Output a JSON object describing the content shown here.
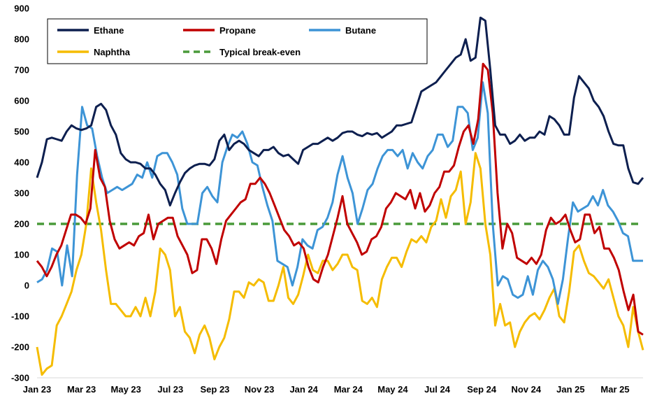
{
  "chart_data": {
    "type": "line",
    "title": "",
    "xlabel": "",
    "ylabel": "",
    "ylim": [
      -300,
      900
    ],
    "yticks": [
      -300,
      -200,
      -100,
      0,
      100,
      200,
      300,
      400,
      500,
      600,
      700,
      800,
      900
    ],
    "x_tick_labels": [
      "Jan 23",
      "Mar 23",
      "May 23",
      "Jul 23",
      "Sep 23",
      "Nov 23",
      "Jan 24",
      "Mar 24",
      "May 24",
      "Jul 24",
      "Sep 24",
      "Nov 24",
      "Jan 25",
      "Mar 25"
    ],
    "grid": false,
    "legend_position": "top",
    "series": [
      {
        "name": "Ethane",
        "color": "#0d1f4f",
        "dash": "solid",
        "values": [
          350,
          400,
          475,
          480,
          475,
          470,
          500,
          520,
          510,
          505,
          510,
          520,
          580,
          590,
          570,
          520,
          490,
          430,
          410,
          400,
          400,
          395,
          380,
          380,
          360,
          330,
          310,
          260,
          300,
          335,
          365,
          380,
          390,
          395,
          395,
          390,
          410,
          470,
          490,
          440,
          460,
          470,
          460,
          440,
          430,
          420,
          440,
          440,
          450,
          430,
          420,
          425,
          410,
          395,
          440,
          450,
          460,
          460,
          470,
          480,
          470,
          480,
          495,
          500,
          500,
          490,
          485,
          495,
          490,
          495,
          480,
          490,
          500,
          520,
          520,
          525,
          530,
          580,
          630,
          640,
          650,
          660,
          680,
          700,
          720,
          740,
          750,
          800,
          730,
          740,
          870,
          860,
          700,
          520,
          490,
          490,
          460,
          470,
          490,
          470,
          480,
          480,
          500,
          490,
          550,
          540,
          520,
          490,
          490,
          610,
          680,
          660,
          640,
          600,
          580,
          550,
          500,
          460,
          455,
          455,
          380,
          335,
          330,
          350
        ]
      },
      {
        "name": "Propane",
        "color": "#c00000",
        "dash": "solid",
        "values": [
          80,
          60,
          30,
          60,
          100,
          130,
          180,
          230,
          230,
          220,
          200,
          250,
          440,
          350,
          320,
          210,
          150,
          120,
          130,
          140,
          130,
          160,
          170,
          230,
          150,
          200,
          210,
          220,
          220,
          160,
          130,
          100,
          40,
          50,
          150,
          150,
          120,
          70,
          150,
          210,
          230,
          250,
          270,
          280,
          330,
          330,
          350,
          330,
          300,
          260,
          220,
          180,
          160,
          130,
          140,
          120,
          60,
          20,
          10,
          60,
          100,
          160,
          220,
          290,
          200,
          170,
          140,
          100,
          110,
          150,
          160,
          190,
          250,
          270,
          300,
          290,
          280,
          310,
          250,
          300,
          240,
          260,
          300,
          320,
          370,
          370,
          390,
          450,
          500,
          520,
          460,
          540,
          720,
          700,
          560,
          300,
          120,
          200,
          170,
          90,
          80,
          70,
          90,
          70,
          100,
          180,
          220,
          200,
          210,
          230,
          180,
          140,
          150,
          230,
          230,
          170,
          190,
          120,
          120,
          90,
          50,
          -20,
          -80,
          -30,
          -150,
          -160
        ]
      },
      {
        "name": "Butane",
        "color": "#3d94d6",
        "dash": "solid",
        "values": [
          10,
          20,
          50,
          120,
          110,
          0,
          130,
          30,
          360,
          580,
          520,
          510,
          420,
          350,
          300,
          310,
          320,
          310,
          320,
          330,
          360,
          350,
          400,
          350,
          420,
          430,
          430,
          400,
          360,
          250,
          200,
          200,
          200,
          300,
          320,
          290,
          270,
          400,
          450,
          490,
          480,
          500,
          460,
          400,
          390,
          320,
          260,
          210,
          80,
          70,
          60,
          0,
          60,
          150,
          130,
          120,
          180,
          190,
          220,
          270,
          360,
          420,
          350,
          300,
          200,
          250,
          310,
          330,
          380,
          420,
          440,
          440,
          420,
          440,
          380,
          430,
          400,
          380,
          420,
          440,
          490,
          490,
          450,
          470,
          580,
          580,
          560,
          440,
          480,
          660,
          560,
          200,
          0,
          30,
          20,
          -30,
          -40,
          -30,
          30,
          -30,
          50,
          80,
          60,
          20,
          -60,
          20,
          150,
          270,
          240,
          250,
          260,
          290,
          260,
          310,
          260,
          240,
          210,
          170,
          160,
          80,
          80,
          80
        ]
      },
      {
        "name": "Naphtha",
        "color": "#f5bc00",
        "dash": "solid",
        "values": [
          -200,
          -290,
          -270,
          -260,
          -130,
          -100,
          -60,
          -20,
          50,
          100,
          200,
          380,
          270,
          180,
          50,
          -60,
          -60,
          -80,
          -100,
          -100,
          -70,
          -100,
          -40,
          -100,
          -20,
          120,
          100,
          50,
          -100,
          -70,
          -150,
          -170,
          -220,
          -160,
          -130,
          -170,
          -240,
          -200,
          -170,
          -110,
          -20,
          -20,
          -40,
          10,
          0,
          20,
          10,
          -50,
          -50,
          0,
          60,
          -40,
          -60,
          -30,
          30,
          100,
          50,
          40,
          80,
          80,
          50,
          70,
          100,
          100,
          60,
          50,
          -50,
          -60,
          -40,
          -70,
          20,
          60,
          90,
          90,
          60,
          110,
          150,
          140,
          160,
          140,
          190,
          210,
          280,
          220,
          290,
          310,
          370,
          200,
          270,
          430,
          380,
          200,
          100,
          -130,
          -60,
          -130,
          -120,
          -200,
          -150,
          -120,
          -100,
          -90,
          -110,
          -80,
          -40,
          -10,
          -100,
          -120,
          -20,
          110,
          130,
          80,
          40,
          30,
          10,
          -10,
          20,
          -40,
          -100,
          -130,
          -200,
          -70,
          -150,
          -210
        ]
      },
      {
        "name": "Typical break-even",
        "color": "#4a9a3a",
        "dash": "dashed",
        "values": [
          200,
          200
        ]
      }
    ]
  }
}
